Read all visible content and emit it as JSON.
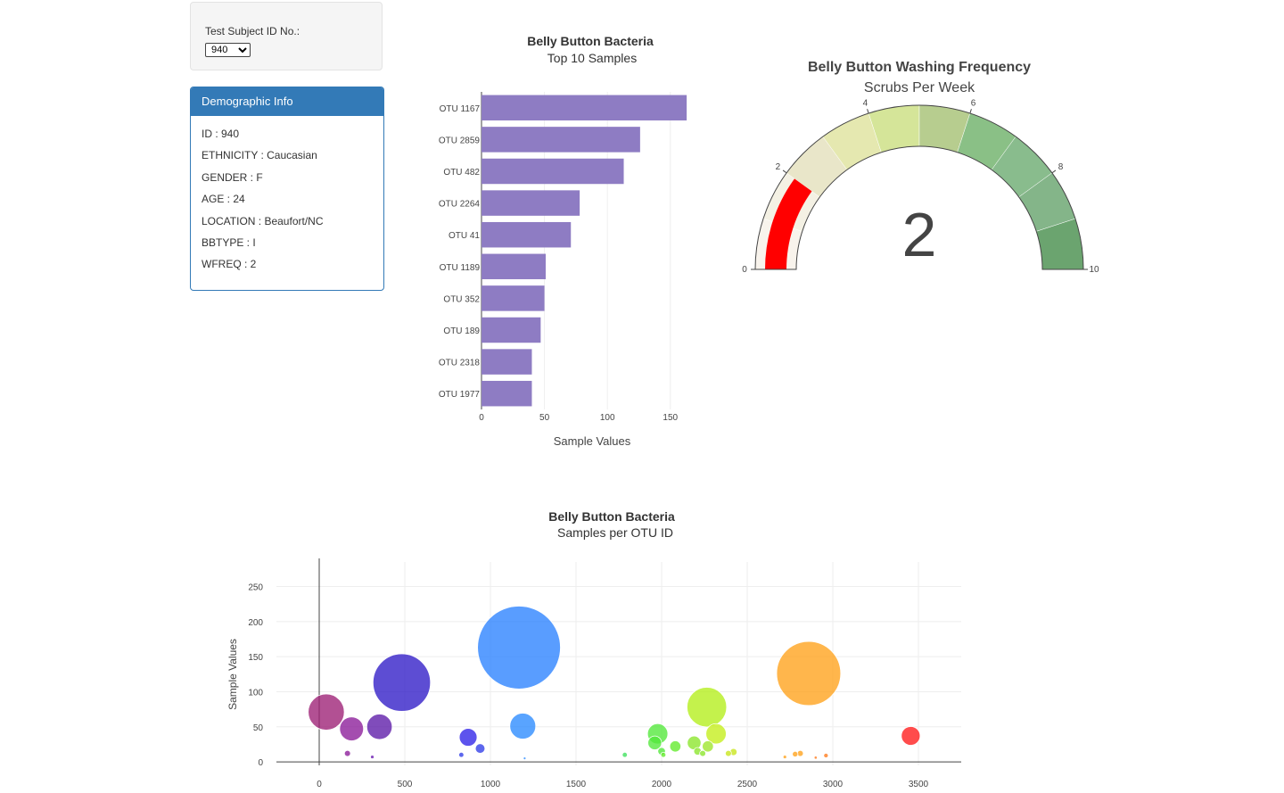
{
  "selector": {
    "label": "Test Subject ID No.:",
    "selected": "940"
  },
  "demographics": {
    "header": "Demographic Info",
    "rows": [
      "ID : 940",
      "ETHNICITY : Caucasian",
      "GENDER : F",
      "AGE : 24",
      "LOCATION : Beaufort/NC",
      "BBTYPE : I",
      "WFREQ : 2"
    ]
  },
  "colors": {
    "panel_blue": "#337ab7",
    "bar": "#8e7cc3",
    "needle": "#ff0000"
  },
  "chart_data": [
    {
      "type": "bar",
      "orientation": "horizontal",
      "title": "Belly Button Bacteria",
      "subtitle": "Top 10 Samples",
      "xlabel": "Sample Values",
      "categories": [
        "OTU 1167",
        "OTU 2859",
        "OTU 482",
        "OTU 2264",
        "OTU 41",
        "OTU 1189",
        "OTU 352",
        "OTU 189",
        "OTU 2318",
        "OTU 1977"
      ],
      "values": [
        163,
        126,
        113,
        78,
        71,
        51,
        50,
        47,
        40,
        40
      ],
      "xlim": [
        0,
        170
      ],
      "xticks": [
        0,
        50,
        100,
        150
      ],
      "grid": true
    },
    {
      "type": "gauge",
      "title": "Belly Button Washing Frequency",
      "subtitle": "Scrubs Per Week",
      "value": 2,
      "value_label": "2",
      "range": [
        0,
        10
      ],
      "ticks": [
        0,
        2,
        4,
        6,
        8,
        10
      ],
      "steps": [
        {
          "range": [
            0,
            1
          ],
          "color": "#f8f3ec"
        },
        {
          "range": [
            1,
            2
          ],
          "color": "#f4f1e4"
        },
        {
          "range": [
            2,
            3
          ],
          "color": "#e9e6c9"
        },
        {
          "range": [
            3,
            4
          ],
          "color": "#e5e8b0"
        },
        {
          "range": [
            4,
            5
          ],
          "color": "#d5e599"
        },
        {
          "range": [
            5,
            6
          ],
          "color": "#b7cd8f"
        },
        {
          "range": [
            6,
            7
          ],
          "color": "#8ac086"
        },
        {
          "range": [
            7,
            8
          ],
          "color": "#89bc8d"
        },
        {
          "range": [
            8,
            9
          ],
          "color": "#84b589"
        },
        {
          "range": [
            9,
            10
          ],
          "color": "#6ba46f"
        }
      ]
    },
    {
      "type": "scatter",
      "mode": "bubble",
      "title": "Belly Button Bacteria",
      "subtitle": "Samples per OTU ID",
      "ylabel": "Sample Values",
      "xlim": [
        -250,
        3750
      ],
      "ylim": [
        -5,
        285
      ],
      "xticks": [
        0,
        500,
        1000,
        1500,
        2000,
        2500,
        3000,
        3500
      ],
      "yticks": [
        0,
        50,
        100,
        150,
        200,
        250
      ],
      "grid": true,
      "points": [
        {
          "x": 41,
          "y": 71,
          "color": "#9c1f74"
        },
        {
          "x": 189,
          "y": 47,
          "color": "#8b1b98"
        },
        {
          "x": 165,
          "y": 12,
          "color": "#8b1b98"
        },
        {
          "x": 352,
          "y": 50,
          "color": "#5c1aa8"
        },
        {
          "x": 310,
          "y": 7,
          "color": "#6a1ab0"
        },
        {
          "x": 482,
          "y": 113,
          "color": "#2f1bc6"
        },
        {
          "x": 870,
          "y": 35,
          "color": "#2f22e8"
        },
        {
          "x": 940,
          "y": 19,
          "color": "#2f3ce8"
        },
        {
          "x": 830,
          "y": 10,
          "color": "#2f3ce8"
        },
        {
          "x": 1167,
          "y": 163,
          "color": "#2a82ff"
        },
        {
          "x": 1189,
          "y": 51,
          "color": "#2a8aff"
        },
        {
          "x": 1200,
          "y": 5,
          "color": "#2a8aff"
        },
        {
          "x": 1785,
          "y": 10,
          "color": "#3de05c"
        },
        {
          "x": 1977,
          "y": 40,
          "color": "#52e83a"
        },
        {
          "x": 1960,
          "y": 27,
          "color": "#52e83a"
        },
        {
          "x": 2000,
          "y": 15,
          "color": "#52e83a"
        },
        {
          "x": 2080,
          "y": 22,
          "color": "#62ea2a"
        },
        {
          "x": 2010,
          "y": 10,
          "color": "#62ea2a"
        },
        {
          "x": 2190,
          "y": 27,
          "color": "#8ae62a"
        },
        {
          "x": 2210,
          "y": 15,
          "color": "#8ae62a"
        },
        {
          "x": 2240,
          "y": 12,
          "color": "#8ae62a"
        },
        {
          "x": 2270,
          "y": 22,
          "color": "#9ee62a"
        },
        {
          "x": 2264,
          "y": 78,
          "color": "#b4ee1a"
        },
        {
          "x": 2318,
          "y": 40,
          "color": "#c4ee1a"
        },
        {
          "x": 2390,
          "y": 12,
          "color": "#c8e61a"
        },
        {
          "x": 2420,
          "y": 14,
          "color": "#c8e61a"
        },
        {
          "x": 2859,
          "y": 126,
          "color": "#ffa21a"
        },
        {
          "x": 2720,
          "y": 7,
          "color": "#ffa21a"
        },
        {
          "x": 2780,
          "y": 11,
          "color": "#ffa21a"
        },
        {
          "x": 2810,
          "y": 12,
          "color": "#ffa21a"
        },
        {
          "x": 2900,
          "y": 6,
          "color": "#ff7a1a"
        },
        {
          "x": 2960,
          "y": 9,
          "color": "#ff7a1a"
        },
        {
          "x": 3455,
          "y": 37,
          "color": "#ff1a1a"
        }
      ]
    }
  ]
}
